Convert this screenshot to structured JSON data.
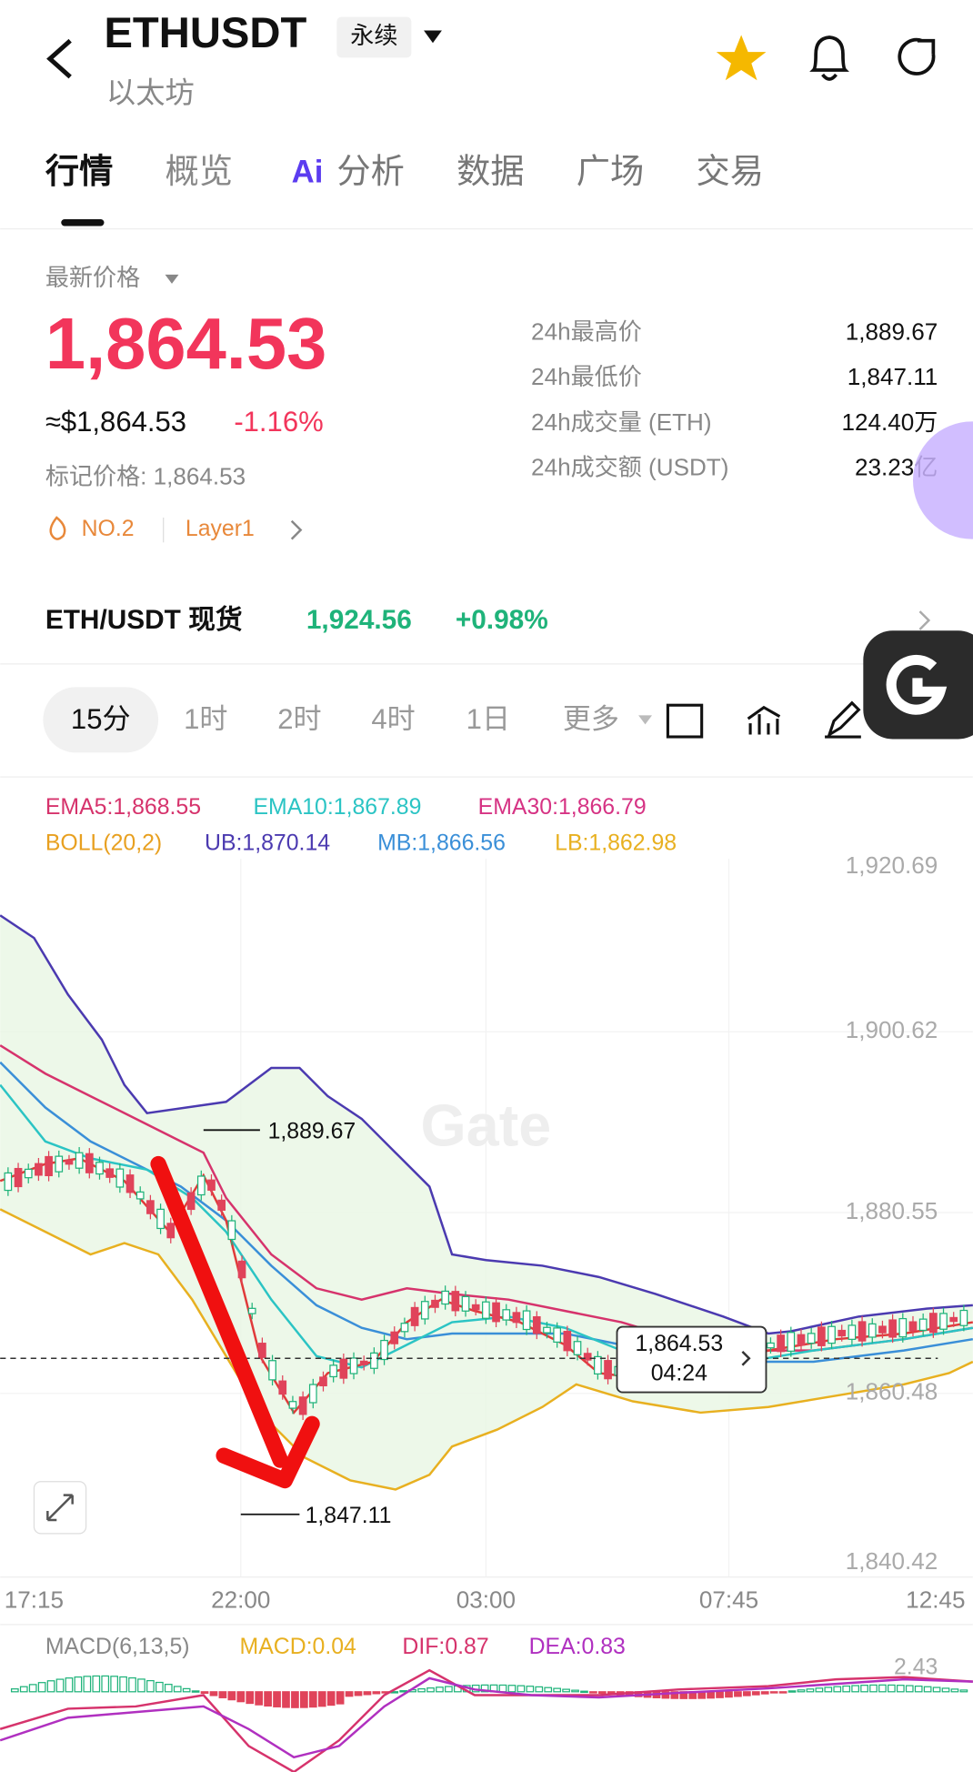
{
  "header": {
    "title": "ETHUSDT",
    "badge": "永续",
    "subtitle": "以太坊"
  },
  "tabs": {
    "items": [
      "行情",
      "概览",
      "分析",
      "数据",
      "广场",
      "交易"
    ],
    "ai_badge": "Ai"
  },
  "price": {
    "label": "最新价格",
    "value": "1,864.53",
    "usd": "≈$1,864.53",
    "change": "-1.16%",
    "mark_price": "标记价格: 1,864.53",
    "tags": [
      "NO.2",
      "Layer1"
    ]
  },
  "stats": [
    [
      "24h最高价",
      "1,889.67"
    ],
    [
      "24h最低价",
      "1,847.11"
    ],
    [
      "24h成交量 (ETH)",
      "124.40万"
    ],
    [
      "24h成交额 (USDT)",
      "23.23亿"
    ]
  ],
  "spot": {
    "name": "ETH/USDT 现货",
    "price": "1,924.56",
    "change": "+0.98%"
  },
  "intervals": [
    "15分",
    "1时",
    "2时",
    "4时",
    "1日",
    "更多"
  ],
  "indicators": {
    "ema": [
      "EMA5:1,868.55",
      "EMA10:1,867.89",
      "EMA30:1,866.79"
    ],
    "boll": [
      "BOLL(20,2)",
      "UB:1,870.14",
      "MB:1,866.56",
      "LB:1,862.98"
    ]
  },
  "chart": {
    "y_axis": [
      "1,920.69",
      "1,900.62",
      "1,880.55",
      "1,860.48",
      "1,840.42"
    ],
    "x_axis": [
      "17:15",
      "22:00",
      "03:00",
      "07:45",
      "12:45"
    ],
    "high_label": "1,889.67",
    "low_label": "1,847.11",
    "current_price": "1,864.53",
    "countdown": "04:24",
    "watermark": "Gate"
  },
  "macd": {
    "labels": [
      "MACD(6,13,5)",
      "MACD:0.04",
      "DIF:0.87",
      "DEA:0.83"
    ],
    "axis": "2.43"
  }
}
